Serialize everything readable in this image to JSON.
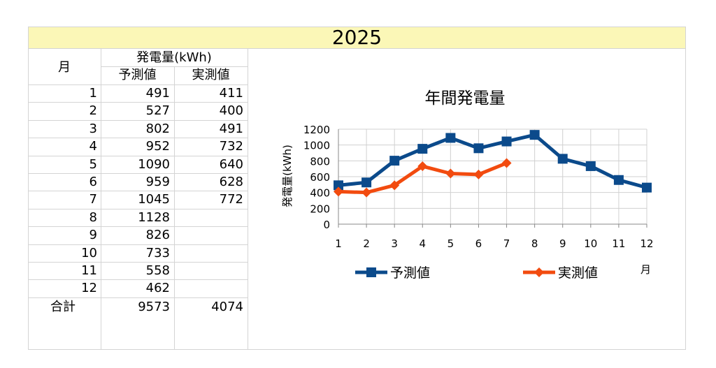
{
  "banner": {
    "year": "2025"
  },
  "table": {
    "month_header": "月",
    "group_header": "発電量(kWh)",
    "col_pred": "予測値",
    "col_actual": "実測値",
    "rows": [
      {
        "month": "1",
        "pred": "491",
        "actual": "411"
      },
      {
        "month": "2",
        "pred": "527",
        "actual": "400"
      },
      {
        "month": "3",
        "pred": "802",
        "actual": "491"
      },
      {
        "month": "4",
        "pred": "952",
        "actual": "732"
      },
      {
        "month": "5",
        "pred": "1090",
        "actual": "640"
      },
      {
        "month": "6",
        "pred": "959",
        "actual": "628"
      },
      {
        "month": "7",
        "pred": "1045",
        "actual": "772"
      },
      {
        "month": "8",
        "pred": "1128",
        "actual": ""
      },
      {
        "month": "9",
        "pred": "826",
        "actual": ""
      },
      {
        "month": "10",
        "pred": "733",
        "actual": ""
      },
      {
        "month": "11",
        "pred": "558",
        "actual": ""
      },
      {
        "month": "12",
        "pred": "462",
        "actual": ""
      }
    ],
    "total_label": "合計",
    "total_pred": "9573",
    "total_actual": "4074"
  },
  "chart_data": {
    "type": "line",
    "title": "年間発電量",
    "ylabel": "発電量(kWh)",
    "xlabel": "月",
    "x": [
      1,
      2,
      3,
      4,
      5,
      6,
      7,
      8,
      9,
      10,
      11,
      12
    ],
    "ylim": [
      0,
      1200
    ],
    "yticks": [
      0,
      200,
      400,
      600,
      800,
      1000,
      1200
    ],
    "grid": true,
    "legend_position": "bottom",
    "series": [
      {
        "name": "予測値",
        "color": "#0b4a8b",
        "marker": "square",
        "values": [
          491,
          527,
          802,
          952,
          1090,
          959,
          1045,
          1128,
          826,
          733,
          558,
          462
        ]
      },
      {
        "name": "実測値",
        "color": "#f24b0f",
        "marker": "diamond",
        "values": [
          411,
          400,
          491,
          732,
          640,
          628,
          772,
          null,
          null,
          null,
          null,
          null
        ]
      }
    ]
  }
}
